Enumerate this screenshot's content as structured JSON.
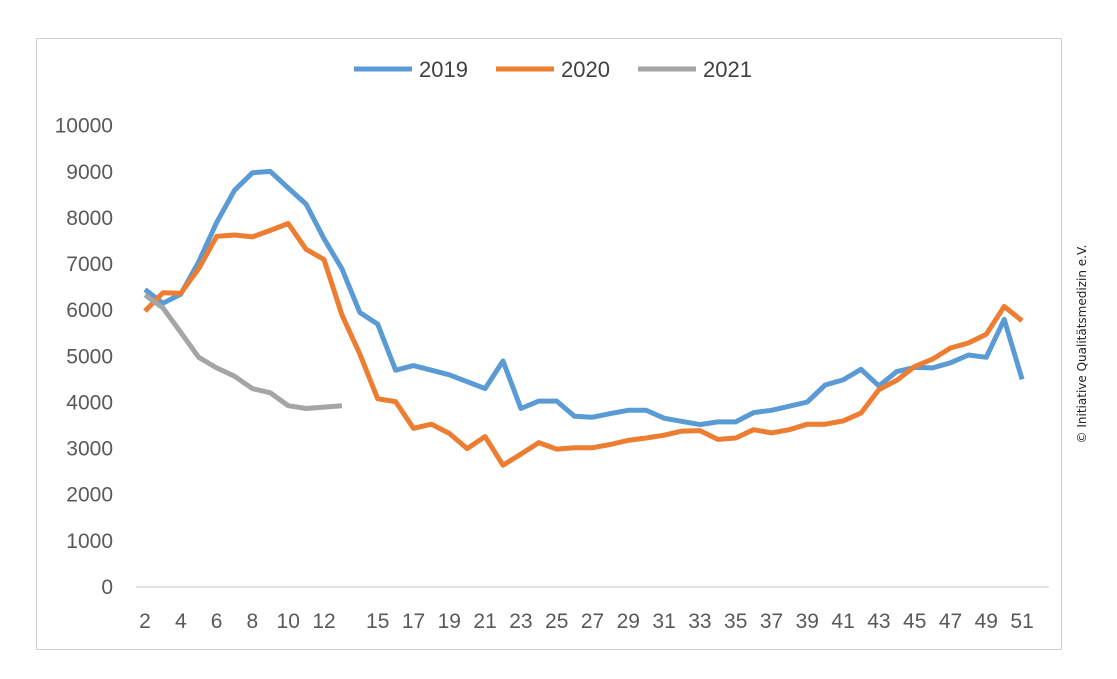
{
  "copyright": "© Initiative Qualitätsmedizin e.V.",
  "chart_data": {
    "type": "line",
    "title": "",
    "xlabel": "",
    "ylabel": "",
    "x": [
      2,
      3,
      4,
      5,
      6,
      7,
      8,
      9,
      10,
      11,
      12,
      13,
      14,
      15,
      16,
      17,
      18,
      19,
      20,
      21,
      22,
      23,
      24,
      25,
      26,
      27,
      28,
      29,
      30,
      31,
      32,
      33,
      34,
      35,
      36,
      37,
      38,
      39,
      40,
      41,
      42,
      43,
      44,
      45,
      46,
      47,
      48,
      49,
      50,
      51,
      52
    ],
    "x_tick_labels": [
      "2",
      "4",
      "6",
      "8",
      "10",
      "12",
      "15",
      "17",
      "19",
      "21",
      "23",
      "25",
      "27",
      "29",
      "31",
      "33",
      "35",
      "37",
      "39",
      "41",
      "43",
      "45",
      "47",
      "49",
      "51"
    ],
    "y_ticks": [
      0,
      1000,
      2000,
      3000,
      4000,
      5000,
      6000,
      7000,
      8000,
      9000,
      10000
    ],
    "ylim": [
      0,
      10000
    ],
    "grid": false,
    "legend_position": "top",
    "series": [
      {
        "name": "2019",
        "color": "#5B9BD5",
        "values": [
          6450,
          6150,
          6350,
          7050,
          7900,
          8600,
          8980,
          9010,
          8650,
          8300,
          7550,
          6900,
          5950,
          5700,
          4700,
          4800,
          4700,
          4600,
          4450,
          4300,
          4900,
          3870,
          4030,
          4030,
          3700,
          3680,
          3760,
          3830,
          3830,
          3660,
          3590,
          3520,
          3580,
          3580,
          3780,
          3830,
          3920,
          4010,
          4380,
          4490,
          4720,
          4360,
          4670,
          4760,
          4750,
          4860,
          5030,
          4980,
          5800,
          4500,
          null
        ]
      },
      {
        "name": "2020",
        "color": "#ED7D31",
        "values": [
          5980,
          6380,
          6370,
          6900,
          7600,
          7630,
          7590,
          7730,
          7880,
          7320,
          7100,
          5900,
          5050,
          4080,
          4020,
          3440,
          3530,
          3330,
          3000,
          3260,
          2640,
          2880,
          3130,
          2990,
          3020,
          3020,
          3090,
          3180,
          3230,
          3290,
          3380,
          3390,
          3200,
          3230,
          3410,
          3340,
          3410,
          3530,
          3530,
          3600,
          3770,
          4280,
          4480,
          4780,
          4940,
          5180,
          5290,
          5480,
          6080,
          5770,
          null
        ]
      },
      {
        "name": "2021",
        "color": "#A5A5A5",
        "values": [
          6330,
          6050,
          5520,
          4980,
          4750,
          4570,
          4300,
          4210,
          3930,
          3870,
          3900,
          3930,
          null,
          null,
          null,
          null,
          null,
          null,
          null,
          null,
          null,
          null,
          null,
          null,
          null,
          null,
          null,
          null,
          null,
          null,
          null,
          null,
          null,
          null,
          null,
          null,
          null,
          null,
          null,
          null,
          null,
          null,
          null,
          null,
          null,
          null,
          null,
          null,
          null,
          null,
          null
        ]
      }
    ]
  }
}
